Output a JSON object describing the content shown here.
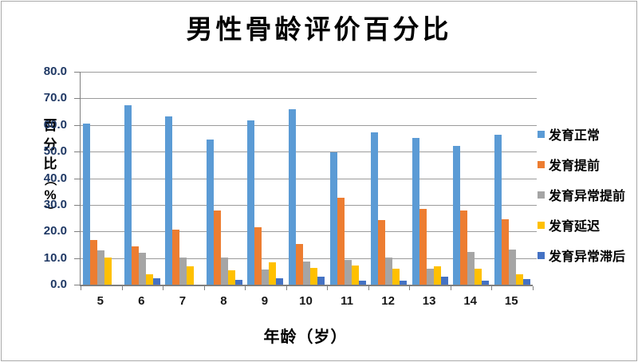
{
  "chart_data": {
    "type": "bar",
    "title": "男性骨龄评价百分比",
    "xlabel": "年龄（岁）",
    "ylabel": "百分比（%）",
    "categories": [
      "5",
      "6",
      "7",
      "8",
      "9",
      "10",
      "11",
      "12",
      "13",
      "14",
      "15"
    ],
    "ylim": [
      0,
      80
    ],
    "ytick_step": 10,
    "yticks": [
      "80.0",
      "70.0",
      "60.0",
      "50.0",
      "40.0",
      "30.0",
      "20.0",
      "10.0",
      "0.0"
    ],
    "grid": true,
    "legend_position": "right",
    "series": [
      {
        "name": "发育正常",
        "color": "#5B9BD5",
        "values": [
          60.6,
          67.5,
          63.2,
          54.4,
          61.7,
          65.9,
          49.8,
          57.2,
          55.2,
          52.2,
          56.4
        ]
      },
      {
        "name": "发育提前",
        "color": "#ED7D31",
        "values": [
          16.9,
          14.5,
          20.8,
          27.8,
          21.5,
          15.3,
          32.7,
          24.3,
          28.6,
          27.9,
          24.5
        ]
      },
      {
        "name": "发育异常提前",
        "color": "#A5A5A5",
        "values": [
          12.8,
          12.0,
          10.1,
          10.3,
          5.6,
          8.7,
          9.3,
          10.2,
          6.0,
          12.3,
          13.2
        ]
      },
      {
        "name": "发育延迟",
        "color": "#FFC000",
        "values": [
          10.3,
          3.9,
          6.9,
          5.5,
          8.5,
          6.4,
          7.2,
          6.1,
          7.0,
          6.0,
          4.0
        ]
      },
      {
        "name": "发育异常滞后",
        "color": "#4472C4",
        "values": [
          0.0,
          2.5,
          0.0,
          1.7,
          2.5,
          3.0,
          1.4,
          1.6,
          3.0,
          1.4,
          2.0
        ]
      }
    ],
    "axis_colors": {
      "y_tick_label": "#1f3864",
      "x_tick_label": "#171717",
      "gridline": "#9b9b9b"
    }
  }
}
